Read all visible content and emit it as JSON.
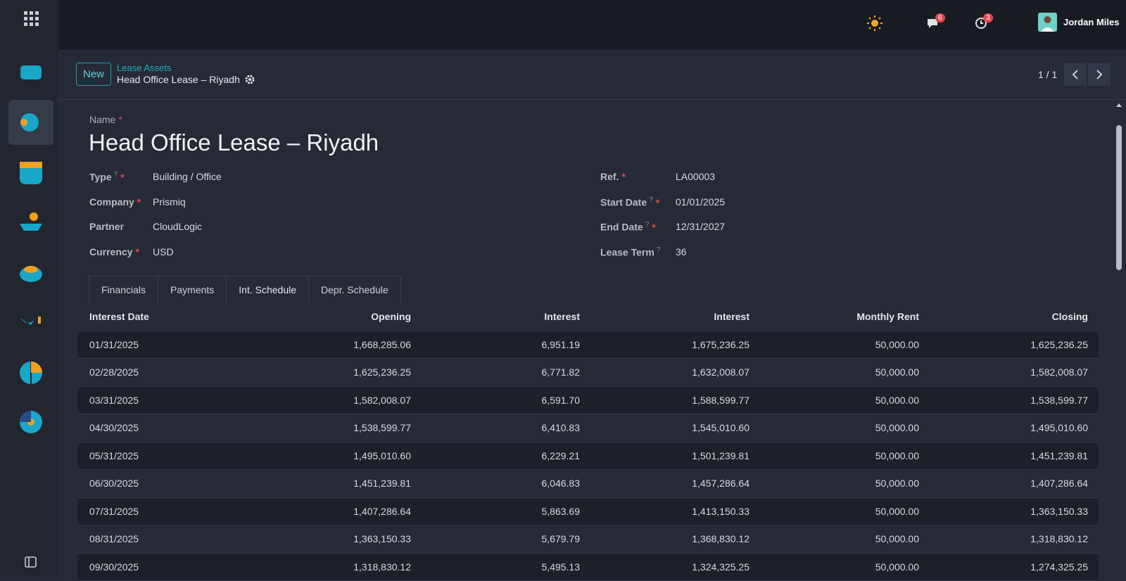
{
  "topbar": {
    "user": "Jordan Miles",
    "messages_badge": "6",
    "activities_badge": "3"
  },
  "breadcrumb": {
    "new_button": "New",
    "parent": "Lease Assets",
    "current": "Head Office Lease – Riyadh"
  },
  "pager": {
    "value": "1 / 1"
  },
  "form": {
    "name_label": "Name",
    "name_required": "*",
    "title": "Head Office Lease – Riyadh",
    "left_fields": [
      {
        "label": "Type",
        "help": "?",
        "required": "*",
        "value": "Building / Office"
      },
      {
        "label": "Company",
        "required": "*",
        "value": "Prismiq"
      },
      {
        "label": "Partner",
        "value": "CloudLogic"
      },
      {
        "label": "Currency",
        "required": "*",
        "value": "USD"
      }
    ],
    "right_fields": [
      {
        "label": "Ref.",
        "required": "*",
        "value": "LA00003"
      },
      {
        "label": "Start Date",
        "help": "?",
        "required": "*",
        "value": "01/01/2025"
      },
      {
        "label": "End Date",
        "help": "?",
        "required": "*",
        "value": "12/31/2027"
      },
      {
        "label": "Lease Term",
        "help": "?",
        "value": "36"
      }
    ]
  },
  "tabs": [
    "Financials",
    "Payments",
    "Int. Schedule",
    "Depr. Schedule"
  ],
  "active_tab": 2,
  "table": {
    "headers": [
      "Interest Date",
      "Opening",
      "Interest",
      "Interest",
      "Monthly Rent",
      "Closing"
    ],
    "rows": [
      [
        "01/31/2025",
        "1,668,285.06",
        "6,951.19",
        "1,675,236.25",
        "50,000.00",
        "1,625,236.25"
      ],
      [
        "02/28/2025",
        "1,625,236.25",
        "6,771.82",
        "1,632,008.07",
        "50,000.00",
        "1,582,008.07"
      ],
      [
        "03/31/2025",
        "1,582,008.07",
        "6,591.70",
        "1,588,599.77",
        "50,000.00",
        "1,538,599.77"
      ],
      [
        "04/30/2025",
        "1,538,599.77",
        "6,410.83",
        "1,545,010.60",
        "50,000.00",
        "1,495,010.60"
      ],
      [
        "05/31/2025",
        "1,495,010.60",
        "6,229.21",
        "1,501,239.81",
        "50,000.00",
        "1,451,239.81"
      ],
      [
        "06/30/2025",
        "1,451,239.81",
        "6,046.83",
        "1,457,286.64",
        "50,000.00",
        "1,407,286.64"
      ],
      [
        "07/31/2025",
        "1,407,286.64",
        "5,863.69",
        "1,413,150.33",
        "50,000.00",
        "1,363,150.33"
      ],
      [
        "08/31/2025",
        "1,363,150.33",
        "5,679.79",
        "1,368,830.12",
        "50,000.00",
        "1,318,830.12"
      ],
      [
        "09/30/2025",
        "1,318,830.12",
        "5,495.13",
        "1,324,325.25",
        "50,000.00",
        "1,274,325.25"
      ]
    ]
  }
}
